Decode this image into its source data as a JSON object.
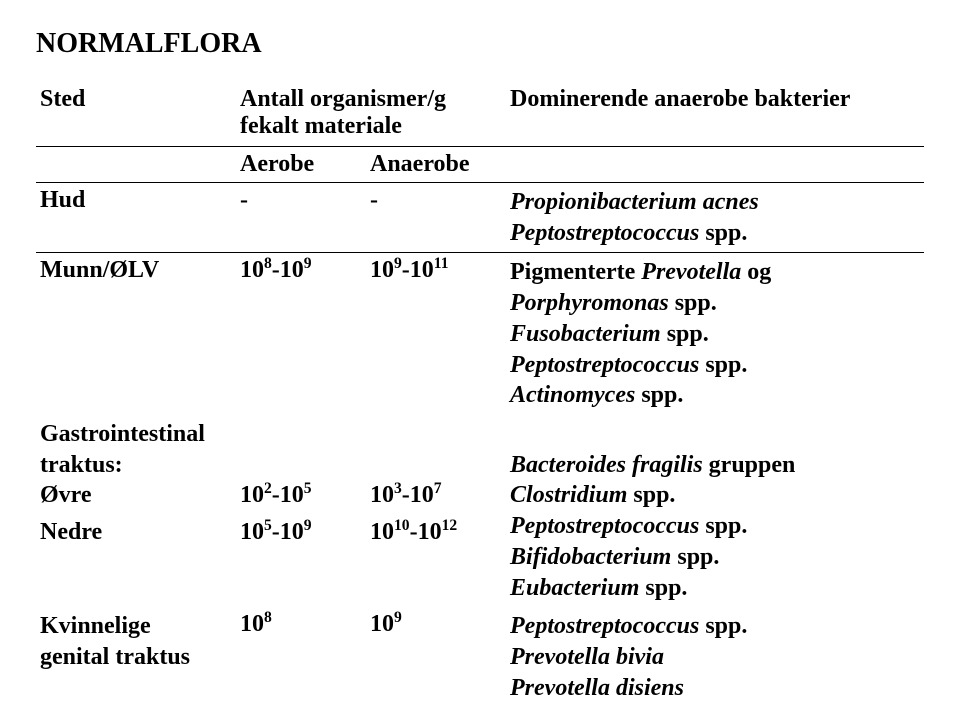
{
  "title": "NORMALFLORA",
  "columns": {
    "sted": "Sted",
    "antall_header": "Antall organismer/g fekalt materiale",
    "aerobe": "Aerobe",
    "anaerobe": "Anaerobe",
    "dominerende": "Dominerende anaerobe bakterier"
  },
  "rows": {
    "hud": {
      "sted": "Hud",
      "aerobe": "-",
      "anaerobe": "-",
      "dom_l1_i": "Propionibacterium acnes",
      "dom_l2_i": "Peptostreptococcus",
      "dom_l2_b": " spp."
    },
    "munn": {
      "sted": "Munn/ØLV",
      "aerobe_html": "10<sup>8</sup>-10<sup>9</sup>",
      "anaerobe_html": "10<sup>9</sup>-10<sup>11</sup>",
      "dom_l1_a": "Pigmenterte ",
      "dom_l1_i": "Prevotella",
      "dom_l1_b": " og",
      "dom_l2_i": "Porphyromonas",
      "dom_l2_b": " spp.",
      "dom_l3_i": "Fusobacterium",
      "dom_l3_b": " spp.",
      "dom_l4_i": "Peptostreptococcus",
      "dom_l4_b": " spp.",
      "dom_l5_i": "Actinomyces",
      "dom_l5_b": " spp."
    },
    "gi": {
      "sted_l1": "Gastrointestinal",
      "sted_l2": "traktus:",
      "sted_l3": "Øvre",
      "sted_l4": "Nedre",
      "aerobe_l1_html": "10<sup>2</sup>-10<sup>5</sup>",
      "aerobe_l2_html": "10<sup>5</sup>-10<sup>9</sup>",
      "anaerobe_l1_html": "10<sup>3</sup>-10<sup>7</sup>",
      "anaerobe_l2_html": "10<sup>10</sup>-10<sup>12</sup>",
      "dom_l1_i": "Bacteroides fragilis",
      "dom_l1_b": " gruppen",
      "dom_l2_i": "Clostridium",
      "dom_l2_b": " spp.",
      "dom_l3_i": "Peptostreptococcus",
      "dom_l3_b": " spp.",
      "dom_l4_i": "Bifidobacterium",
      "dom_l4_b": " spp.",
      "dom_l5_i": "Eubacterium",
      "dom_l5_b": " spp."
    },
    "kvinn": {
      "sted_l1": "Kvinnelige",
      "sted_l2": "genital traktus",
      "aerobe_html": "10<sup>8</sup>",
      "anaerobe_html": "10<sup>9</sup>",
      "dom_l1_i": "Peptostreptococcus",
      "dom_l1_b": " spp.",
      "dom_l2_i": "Prevotella bivia",
      "dom_l3_i": "Prevotella disiens"
    }
  }
}
